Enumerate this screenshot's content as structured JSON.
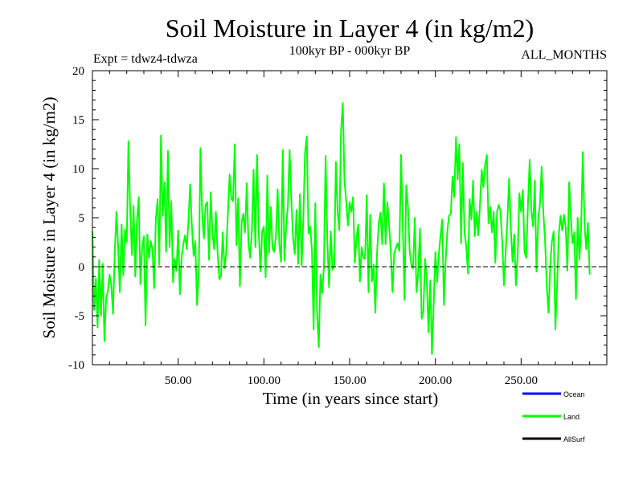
{
  "chart_data": {
    "type": "line",
    "title": "Soil Moisture in Layer 4 (in kg/m2)",
    "subtitle": "100kyr BP - 000kyr BP",
    "left_label": "Expt = tdwz4-tdwza",
    "right_label": "ALL_MONTHS",
    "xlabel": "Time (in years since start)",
    "ylabel": "Soil Moisture in Layer 4 (in kg/m2)",
    "xlim": [
      0,
      300
    ],
    "ylim": [
      -10,
      20
    ],
    "x_ticks": [
      50,
      100,
      150,
      200,
      250
    ],
    "x_tick_labels": [
      "50.00",
      "100.00",
      "150.00",
      "200.00",
      "250.00"
    ],
    "y_ticks": [
      -10,
      -5,
      0,
      5,
      10,
      15,
      20
    ],
    "y_tick_labels": [
      "-10",
      "-5",
      "0",
      "5",
      "10",
      "15",
      "20"
    ],
    "zero_line": {
      "value": 0,
      "style": "dashed"
    },
    "legend_placement": "bottom-right",
    "series": [
      {
        "name": "Land",
        "color": "#00ff00",
        "x_start": 0,
        "x_step": 1,
        "values": [
          3.6,
          -4.4,
          -1.2,
          -6.2,
          0.7,
          -5.0,
          0.3,
          -7.6,
          -3.2,
          -2.5,
          -0.8,
          -1.9,
          -4.8,
          1.3,
          5.6,
          2.0,
          -2.6,
          4.3,
          -0.9,
          3.8,
          2.5,
          12.8,
          6.1,
          1.2,
          6.2,
          -1.0,
          4.8,
          7.1,
          -1.8,
          1.9,
          3.1,
          -6.0,
          3.3,
          0.9,
          2.6,
          1.8,
          -2.2,
          4.9,
          6.9,
          0.2,
          13.4,
          5.2,
          8.6,
          1.5,
          11.8,
          2.0,
          6.7,
          -1.6,
          0.8,
          -0.4,
          3.7,
          -2.8,
          0.9,
          2.3,
          3.2,
          1.8,
          4.7,
          8.4,
          4.2,
          1.1,
          2.6,
          -3.9,
          -0.7,
          12.1,
          5.5,
          2.9,
          6.3,
          6.6,
          0.7,
          7.6,
          3.4,
          1.8,
          5.6,
          1.5,
          -1.3,
          -0.9,
          3.5,
          -0.2,
          1.4,
          5.3,
          9.4,
          6.9,
          6.7,
          12.5,
          2.2,
          7.0,
          -2.0,
          4.5,
          5.4,
          3.5,
          8.5,
          2.4,
          0.9,
          3.7,
          9.9,
          2.0,
          11.4,
          3.6,
          -0.5,
          3.6,
          4.1,
          -1.1,
          9.3,
          1.4,
          6.1,
          1.9,
          1.5,
          3.1,
          7.9,
          2.3,
          0.5,
          11.9,
          0.6,
          4.3,
          6.2,
          11.9,
          6.8,
          3.0,
          1.3,
          5.8,
          0.3,
          7.4,
          0.1,
          5.0,
          11.6,
          13.3,
          3.4,
          4.1,
          1.7,
          -6.4,
          6.5,
          -4.6,
          -8.2,
          -0.8,
          -2.7,
          0.0,
          11.3,
          2.6,
          -2.1,
          3.6,
          -0.3,
          0.1,
          10.7,
          5.5,
          3.7,
          13.8,
          16.7,
          8.7,
          6.8,
          4.2,
          6.6,
          5.6,
          7.1,
          0.4,
          2.8,
          4.3,
          -1.5,
          2.0,
          0.9,
          0.8,
          7.3,
          -2.6,
          5.3,
          -1.5,
          0.2,
          -4.7,
          1.4,
          4.5,
          5.5,
          2.3,
          8.5,
          2.3,
          6.6,
          4.3,
          1.5,
          -2.6,
          1.4,
          1.9,
          2.4,
          1.6,
          11.4,
          4.4,
          -3.4,
          8.3,
          6.2,
          1.6,
          0.2,
          -0.2,
          5.0,
          -2.6,
          -0.7,
          3.9,
          -5.3,
          -4.6,
          0.8,
          -1.3,
          -6.7,
          -1.4,
          -8.9,
          -4.0,
          1.5,
          -1.6,
          1.2,
          3.2,
          4.8,
          -3.9,
          0.7,
          3.7,
          5.2,
          5.4,
          9.2,
          7.1,
          13.2,
          8.9,
          12.5,
          2.4,
          10.6,
          3.5,
          2.1,
          -0.7,
          6.9,
          4.8,
          8.8,
          3.1,
          5.6,
          3.2,
          6.2,
          9.9,
          8.1,
          10.4,
          11.4,
          4.4,
          6.1,
          3.5,
          5.6,
          0.4,
          5.7,
          6.3,
          5.6,
          2.5,
          -1.9,
          1.4,
          4.8,
          9.0,
          4.0,
          0.5,
          3.3,
          -1.9,
          1.3,
          7.5,
          5.6,
          7.8,
          1.5,
          0.9,
          6.4,
          10.9,
          5.7,
          4.1,
          8.8,
          -0.5,
          5.0,
          6.4,
          10.2,
          5.4,
          2.6,
          -2.0,
          -4.7,
          0.1,
          2.6,
          3.6,
          -6.4,
          -1.9,
          3.4,
          5.2,
          3.7,
          5.3,
          4.1,
          -0.4,
          8.6,
          5.1,
          2.4,
          3.5,
          -3.3,
          5.0,
          0.7,
          3.9,
          11.7,
          4.3,
          1.8,
          4.5,
          -0.8
        ]
      }
    ],
    "legend": [
      {
        "name": "Ocean",
        "color": "#0000ff"
      },
      {
        "name": "Land",
        "color": "#00ff00"
      },
      {
        "name": "AllSurf",
        "color": "#000000"
      }
    ]
  }
}
